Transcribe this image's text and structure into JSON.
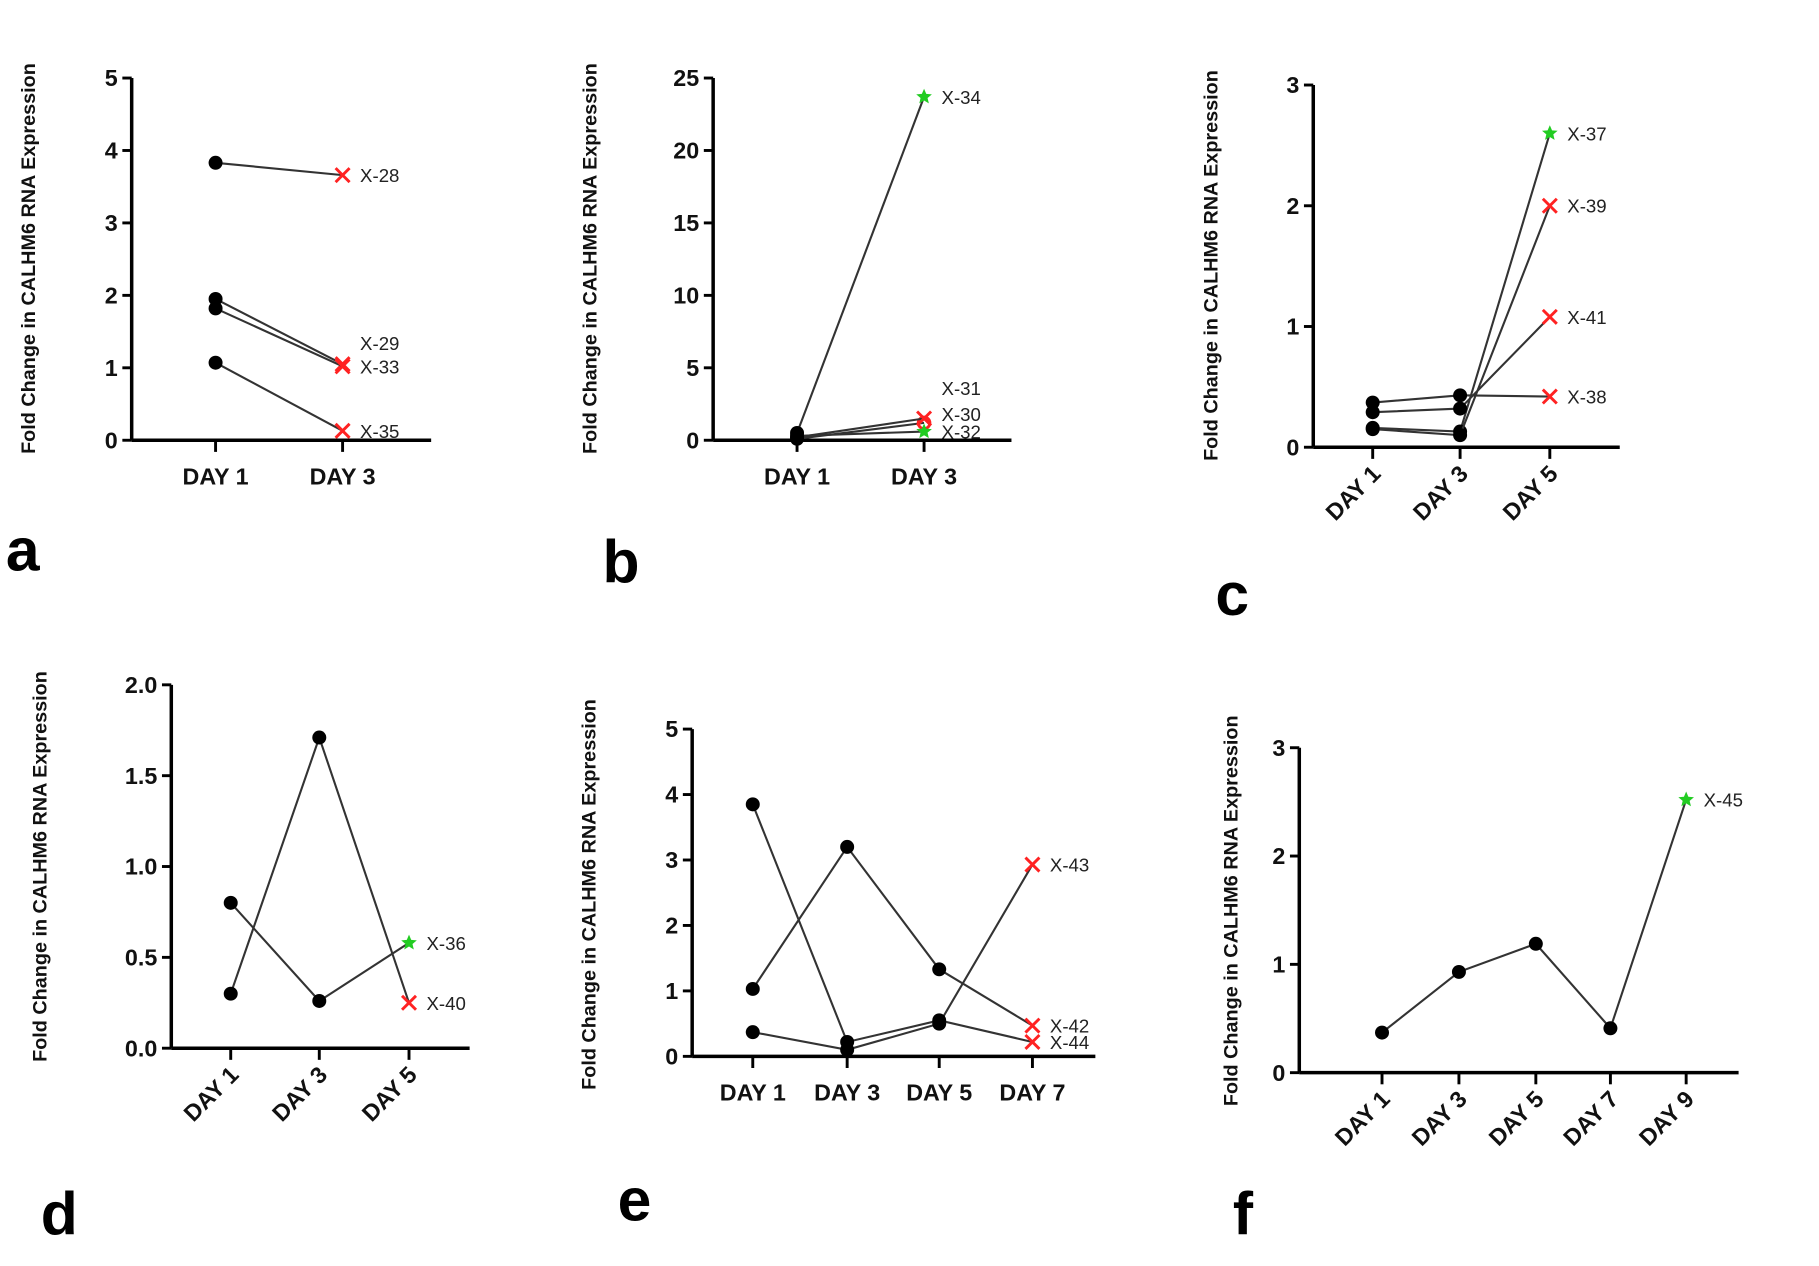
{
  "colors": {
    "line": "#333333",
    "point": "#000000",
    "red": "#ff2222",
    "green": "#22cc22"
  },
  "chart_data": [
    {
      "type": "line",
      "panel": "a",
      "ylabel": "Fold Change in CALHM6 RNA Expression",
      "xlabel": "",
      "categories": [
        "DAY 1",
        "DAY 3"
      ],
      "ylim": [
        0,
        5
      ],
      "yticks": [
        "0",
        "1",
        "2",
        "3",
        "4",
        "5"
      ],
      "x_rotated": false,
      "series": [
        {
          "name": "X-28",
          "values": [
            3.83,
            3.66
          ],
          "end_marker": "x"
        },
        {
          "name": "X-29",
          "values": [
            1.95,
            1.05
          ],
          "end_marker": "x"
        },
        {
          "name": "X-33",
          "values": [
            1.82,
            1.02
          ],
          "end_marker": "x"
        },
        {
          "name": "X-35",
          "values": [
            1.07,
            0.13
          ],
          "end_marker": "x"
        }
      ]
    },
    {
      "type": "line",
      "panel": "b",
      "ylabel": "Fold Change in CALHM6 RNA Expression",
      "xlabel": "",
      "categories": [
        "DAY 1",
        "DAY 3"
      ],
      "ylim": [
        0,
        25
      ],
      "yticks": [
        "0",
        "5",
        "10",
        "15",
        "20",
        "25"
      ],
      "x_rotated": false,
      "series": [
        {
          "name": "X-34",
          "values": [
            0.5,
            23.7
          ],
          "end_marker": "star"
        },
        {
          "name": "X-31",
          "values": [
            0.1,
            1.2
          ],
          "end_marker": "o"
        },
        {
          "name": "X-30",
          "values": [
            0.2,
            1.5
          ],
          "end_marker": "x"
        },
        {
          "name": "X-32",
          "values": [
            0.3,
            0.6
          ],
          "end_marker": "star"
        }
      ]
    },
    {
      "type": "line",
      "panel": "c",
      "ylabel": "Fold Change in CALHM6 RNA Expression",
      "xlabel": "",
      "categories": [
        "DAY 1",
        "DAY 3",
        "DAY 5"
      ],
      "ylim": [
        0,
        3
      ],
      "yticks": [
        "0",
        "1",
        "2",
        "3"
      ],
      "x_rotated": true,
      "series": [
        {
          "name": "X-37",
          "values": [
            0.16,
            0.13,
            2.6
          ],
          "end_marker": "star"
        },
        {
          "name": "X-39",
          "values": [
            0.15,
            0.1,
            2.0
          ],
          "end_marker": "x"
        },
        {
          "name": "X-41",
          "values": [
            0.29,
            0.32,
            1.08
          ],
          "end_marker": "x"
        },
        {
          "name": "X-38",
          "values": [
            0.37,
            0.43,
            0.42
          ],
          "end_marker": "x"
        }
      ]
    },
    {
      "type": "line",
      "panel": "d",
      "ylabel": "Fold Change in CALHM6 RNA Expression",
      "xlabel": "",
      "categories": [
        "DAY 1",
        "DAY 3",
        "DAY 5"
      ],
      "ylim": [
        0,
        2
      ],
      "yticks": [
        "0.0",
        "0.5",
        "1.0",
        "1.5",
        "2.0"
      ],
      "x_rotated": true,
      "series": [
        {
          "name": "X-36",
          "values": [
            0.8,
            0.26,
            0.58
          ],
          "end_marker": "star"
        },
        {
          "name": "X-40",
          "values": [
            0.3,
            1.71,
            0.25
          ],
          "end_marker": "x"
        }
      ]
    },
    {
      "type": "line",
      "panel": "e",
      "ylabel": "Fold Change in CALHM6 RNA Expression",
      "xlabel": "",
      "categories": [
        "DAY 1",
        "DAY 3",
        "DAY 5",
        "DAY 7"
      ],
      "ylim": [
        0,
        5
      ],
      "yticks": [
        "0",
        "1",
        "2",
        "3",
        "4",
        "5"
      ],
      "x_rotated": false,
      "series": [
        {
          "name": "X-43",
          "values": [
            0.37,
            0.1,
            0.5,
            2.93
          ],
          "end_marker": "x"
        },
        {
          "name": "X-42",
          "values": [
            1.03,
            3.2,
            1.33,
            0.47
          ],
          "end_marker": "x"
        },
        {
          "name": "X-44",
          "values": [
            3.85,
            0.22,
            0.55,
            0.22
          ],
          "end_marker": "x"
        }
      ]
    },
    {
      "type": "line",
      "panel": "f",
      "ylabel": "Fold Change in CALHM6 RNA Expression",
      "xlabel": "",
      "categories": [
        "DAY 1",
        "DAY 3",
        "DAY 5",
        "DAY 7",
        "DAY 9"
      ],
      "ylim": [
        0,
        3
      ],
      "yticks": [
        "0",
        "1",
        "2",
        "3"
      ],
      "x_rotated": true,
      "series": [
        {
          "name": "X-45",
          "values": [
            0.37,
            0.93,
            1.19,
            0.41,
            2.52
          ],
          "end_marker": "star"
        }
      ]
    }
  ]
}
